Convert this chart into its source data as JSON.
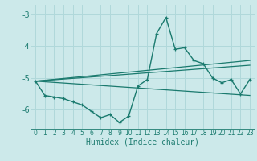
{
  "xlabel": "Humidex (Indice chaleur)",
  "bg_color": "#cce9ea",
  "grid_color": "#b0d8da",
  "line_color": "#1a7a6e",
  "xlim": [
    -0.5,
    23.5
  ],
  "ylim": [
    -6.6,
    -2.7
  ],
  "yticks": [
    -6,
    -5,
    -4,
    -3
  ],
  "xticks": [
    0,
    1,
    2,
    3,
    4,
    5,
    6,
    7,
    8,
    9,
    10,
    11,
    12,
    13,
    14,
    15,
    16,
    17,
    18,
    19,
    20,
    21,
    22,
    23
  ],
  "main_x": [
    0,
    1,
    2,
    3,
    4,
    5,
    6,
    7,
    8,
    9,
    10,
    11,
    12,
    13,
    14,
    15,
    16,
    17,
    18,
    19,
    20,
    21,
    22,
    23
  ],
  "main_y": [
    -5.1,
    -5.55,
    -5.6,
    -5.65,
    -5.75,
    -5.85,
    -6.05,
    -6.25,
    -6.15,
    -6.4,
    -6.2,
    -5.25,
    -5.05,
    -3.6,
    -3.1,
    -4.1,
    -4.05,
    -4.45,
    -4.55,
    -5.0,
    -5.15,
    -5.05,
    -5.5,
    -5.05
  ],
  "line1_x": [
    0,
    23
  ],
  "line1_y": [
    -5.1,
    -4.6
  ],
  "line2_x": [
    0,
    23
  ],
  "line2_y": [
    -5.1,
    -4.45
  ],
  "line3_x": [
    0,
    23
  ],
  "line3_y": [
    -5.1,
    -5.55
  ]
}
